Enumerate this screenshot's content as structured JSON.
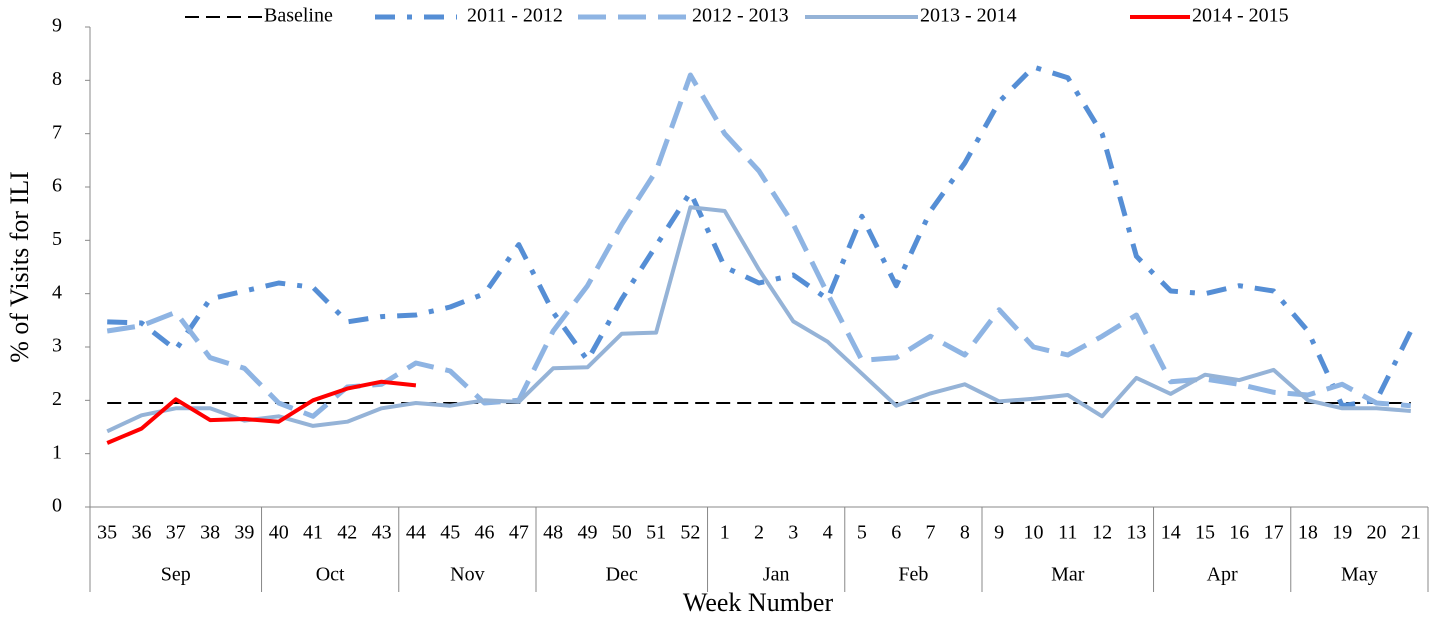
{
  "chart_data": {
    "type": "line",
    "y_label": "% of Visits for ILI",
    "x_label": "Week Number",
    "categories": [
      "35",
      "36",
      "37",
      "38",
      "39",
      "40",
      "41",
      "42",
      "43",
      "44",
      "45",
      "46",
      "47",
      "48",
      "49",
      "50",
      "51",
      "52",
      "1",
      "2",
      "3",
      "4",
      "5",
      "6",
      "7",
      "8",
      "9",
      "10",
      "11",
      "12",
      "13",
      "14",
      "15",
      "16",
      "17",
      "18",
      "19",
      "20",
      "21"
    ],
    "x_groups": [
      "Sep",
      null,
      null,
      null,
      null,
      "Oct",
      null,
      null,
      null,
      "Nov",
      null,
      null,
      null,
      "Dec",
      null,
      null,
      null,
      null,
      "Jan",
      null,
      null,
      null,
      "Feb",
      null,
      null,
      null,
      "Mar",
      null,
      null,
      null,
      null,
      "Apr",
      null,
      null,
      null,
      "May",
      null,
      null,
      null
    ],
    "ylim": [
      0,
      9
    ],
    "yticks": [
      0,
      1,
      2,
      3,
      4,
      5,
      6,
      7,
      8,
      9
    ],
    "legend": "top",
    "series": [
      {
        "name": "Baseline",
        "color": "#000000",
        "dash": "dashed",
        "values": [
          1.95,
          1.95,
          1.95,
          1.95,
          1.95,
          1.95,
          1.95,
          1.95,
          1.95,
          1.95,
          1.95,
          1.95,
          1.95,
          1.95,
          1.95,
          1.95,
          1.95,
          1.95,
          1.95,
          1.95,
          1.95,
          1.95,
          1.95,
          1.95,
          1.95,
          1.95,
          1.95,
          1.95,
          1.95,
          1.95,
          1.95,
          1.95,
          1.95,
          1.95,
          1.95,
          1.95,
          1.95,
          1.95,
          1.95
        ]
      },
      {
        "name": "2011 - 2012",
        "color": "#558ed5",
        "dash": "dash-dot",
        "values": [
          3.47,
          3.45,
          2.95,
          3.9,
          4.05,
          4.2,
          4.12,
          3.47,
          3.57,
          3.6,
          3.75,
          4.0,
          4.92,
          3.65,
          2.75,
          3.9,
          4.9,
          5.9,
          4.5,
          4.2,
          4.35,
          3.9,
          5.45,
          4.15,
          5.55,
          6.45,
          7.6,
          8.25,
          8.05,
          7.0,
          4.7,
          4.05,
          4.0,
          4.15,
          4.05,
          3.3,
          1.9,
          2.0,
          3.3
        ]
      },
      {
        "name": "2012 - 2013",
        "color": "#8eb4e3",
        "dash": "long-dash",
        "values": [
          3.3,
          3.4,
          3.65,
          2.8,
          2.6,
          1.95,
          1.7,
          2.25,
          2.3,
          2.7,
          2.55,
          1.95,
          2.0,
          3.3,
          4.15,
          5.3,
          6.3,
          8.1,
          7.0,
          6.3,
          5.3,
          4.0,
          2.75,
          2.8,
          3.2,
          2.85,
          3.7,
          3.0,
          2.85,
          3.2,
          3.6,
          2.35,
          2.4,
          2.3,
          2.15,
          2.1,
          2.3,
          1.95,
          1.9
        ]
      },
      {
        "name": "2013 - 2014",
        "color": "#95b3d7",
        "dash": "solid",
        "values": [
          1.42,
          1.72,
          1.85,
          1.85,
          1.62,
          1.7,
          1.52,
          1.6,
          1.85,
          1.95,
          1.9,
          2.0,
          1.97,
          2.6,
          2.62,
          3.25,
          3.27,
          5.62,
          5.55,
          4.45,
          3.48,
          3.1,
          2.5,
          1.9,
          2.13,
          2.3,
          1.98,
          2.03,
          2.1,
          1.7,
          2.42,
          2.12,
          2.48,
          2.38,
          2.57,
          2.0,
          1.85,
          1.85,
          1.8
        ]
      },
      {
        "name": "2014 - 2015",
        "color": "#ff0000",
        "dash": "solid",
        "values": [
          1.2,
          1.47,
          2.02,
          1.63,
          1.65,
          1.6,
          2.0,
          2.22,
          2.35,
          2.28,
          null,
          null,
          null,
          null,
          null,
          null,
          null,
          null,
          null,
          null,
          null,
          null,
          null,
          null,
          null,
          null,
          null,
          null,
          null,
          null,
          null,
          null,
          null,
          null,
          null,
          null,
          null,
          null,
          null
        ]
      }
    ]
  }
}
